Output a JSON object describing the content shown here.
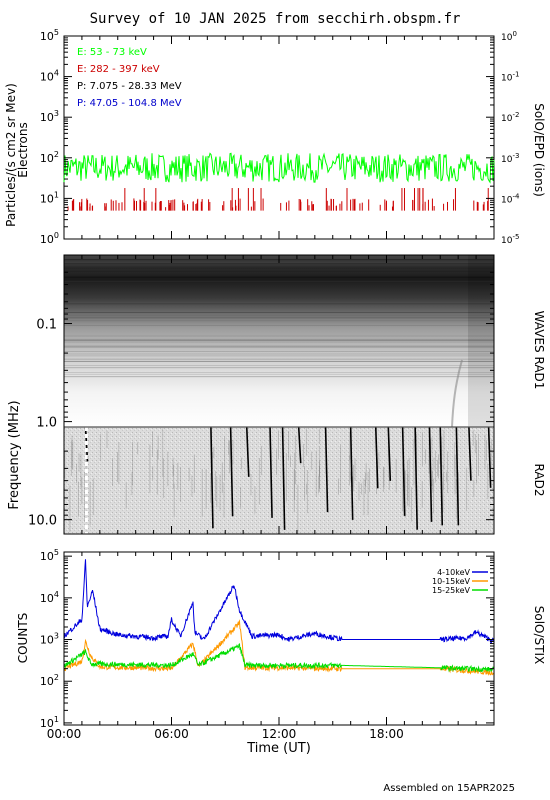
{
  "title": "Survey of 10 JAN 2025 from secchirh.obspm.fr",
  "footer": "Assembled on 15APR2025",
  "colors": {
    "green": "#00ff00",
    "red": "#cc0000",
    "black": "#000000",
    "blue": "#0000cc",
    "orange": "#ff9900",
    "stix_blue": "#0000dd",
    "stix_green": "#00dd00"
  },
  "panel1": {
    "ylabel": "Particles/(s cm2 sr Mev)",
    "ylabel2": "Electrons",
    "right_label": "SolO/EPD (ions)",
    "yticks": [
      {
        "base": "10",
        "exp": "5"
      },
      {
        "base": "10",
        "exp": "4"
      },
      {
        "base": "10",
        "exp": "3"
      },
      {
        "base": "10",
        "exp": "2"
      },
      {
        "base": "10",
        "exp": "1"
      },
      {
        "base": "10",
        "exp": "0"
      }
    ],
    "yticks_right": [
      {
        "base": "10",
        "exp": "0"
      },
      {
        "base": "10",
        "exp": "-1"
      },
      {
        "base": "10",
        "exp": "-2"
      },
      {
        "base": "10",
        "exp": "-3"
      },
      {
        "base": "10",
        "exp": "-4"
      },
      {
        "base": "10",
        "exp": "-5"
      }
    ],
    "legend": [
      {
        "text": "E: 53 - 73 keV",
        "color": "#00ff00"
      },
      {
        "text": "E: 282 - 397 keV",
        "color": "#cc0000"
      },
      {
        "text": "P: 7.075 - 28.33 MeV",
        "color": "#000000"
      },
      {
        "text": "P: 47.05 - 104.8 MeV",
        "color": "#0000cc"
      }
    ]
  },
  "panel2": {
    "ylabel": "Frequency (MHz)",
    "label_top": "WAVES RAD1",
    "label_bottom": "RAD2",
    "yticks": [
      "0.1",
      "1.0",
      "10.0"
    ]
  },
  "panel3": {
    "ylabel": "COUNTS",
    "right_label": "SolO/STIX",
    "xlabel": "Time (UT)",
    "xticks": [
      "00:00",
      "06:00",
      "12:00",
      "18:00"
    ],
    "yticks": [
      {
        "base": "10",
        "exp": "5"
      },
      {
        "base": "10",
        "exp": "4"
      },
      {
        "base": "10",
        "exp": "3"
      },
      {
        "base": "10",
        "exp": "2"
      },
      {
        "base": "10",
        "exp": "1"
      }
    ],
    "legend": [
      {
        "text": "4-10keV",
        "color": "#0000dd"
      },
      {
        "text": "10-15keV",
        "color": "#ff9900"
      },
      {
        "text": "15-25keV",
        "color": "#00dd00"
      }
    ]
  },
  "chart_data": [
    {
      "type": "line",
      "title": "Survey of 10 JAN 2025 from secchirh.obspm.fr",
      "ylabel": "Particles/(s cm2 sr Mev) Electrons",
      "yscale": "log",
      "ylim": [
        1,
        100000
      ],
      "xlim_hours": [
        0,
        24
      ],
      "series": [
        {
          "name": "E: 53 - 73 keV",
          "level": 50,
          "range": [
            25,
            130
          ]
        },
        {
          "name": "E: 282 - 397 keV",
          "level": 5,
          "spikes_to": 18
        }
      ]
    },
    {
      "type": "heatmap",
      "ylabel": "Frequency (MHz)",
      "yscale": "log",
      "ylim": [
        0.02,
        14
      ],
      "bands": [
        "WAVES RAD1",
        "RAD2"
      ],
      "burst_hours": [
        1.2,
        8.2,
        9.3,
        10.2,
        11.5,
        12.2,
        13.1,
        14.6,
        16.0,
        17.4,
        18.1,
        18.9,
        19.6,
        20.4,
        21.0,
        21.9,
        22.6,
        23.7
      ]
    },
    {
      "type": "line",
      "ylabel": "COUNTS",
      "xlabel": "Time (UT)",
      "yscale": "log",
      "ylim": [
        10,
        100000
      ],
      "xlim_hours": [
        0,
        24
      ],
      "series": [
        {
          "name": "4-10keV",
          "x": [
            0,
            1.0,
            1.2,
            1.3,
            1.6,
            2.0,
            3.0,
            5.0,
            5.8,
            6.0,
            6.5,
            7.2,
            7.3,
            7.8,
            9.5,
            9.8,
            10.5,
            12.0,
            12.5,
            14.0,
            15.5,
            21.0,
            22.5,
            23.0,
            24.0
          ],
          "values": [
            1200,
            3000,
            80000,
            6000,
            15000,
            1800,
            1300,
            1100,
            1200,
            3000,
            1200,
            8000,
            1500,
            1000,
            20000,
            5000,
            1200,
            1300,
            1000,
            1400,
            1000,
            1000,
            1100,
            1500,
            900
          ]
        },
        {
          "name": "10-15keV",
          "x": [
            0,
            1.0,
            1.2,
            1.5,
            2.0,
            6.0,
            7.2,
            7.5,
            9.8,
            10.1,
            12.0,
            15.5,
            21.0,
            24.0
          ],
          "values": [
            200,
            300,
            900,
            400,
            220,
            200,
            800,
            220,
            2500,
            210,
            210,
            200,
            200,
            160
          ]
        },
        {
          "name": "15-25keV",
          "x": [
            0,
            1.2,
            1.5,
            6.0,
            7.2,
            7.5,
            9.8,
            10.1,
            15.5,
            21.0,
            24.0
          ],
          "values": [
            230,
            500,
            260,
            240,
            450,
            240,
            700,
            240,
            240,
            210,
            190
          ]
        }
      ]
    }
  ]
}
